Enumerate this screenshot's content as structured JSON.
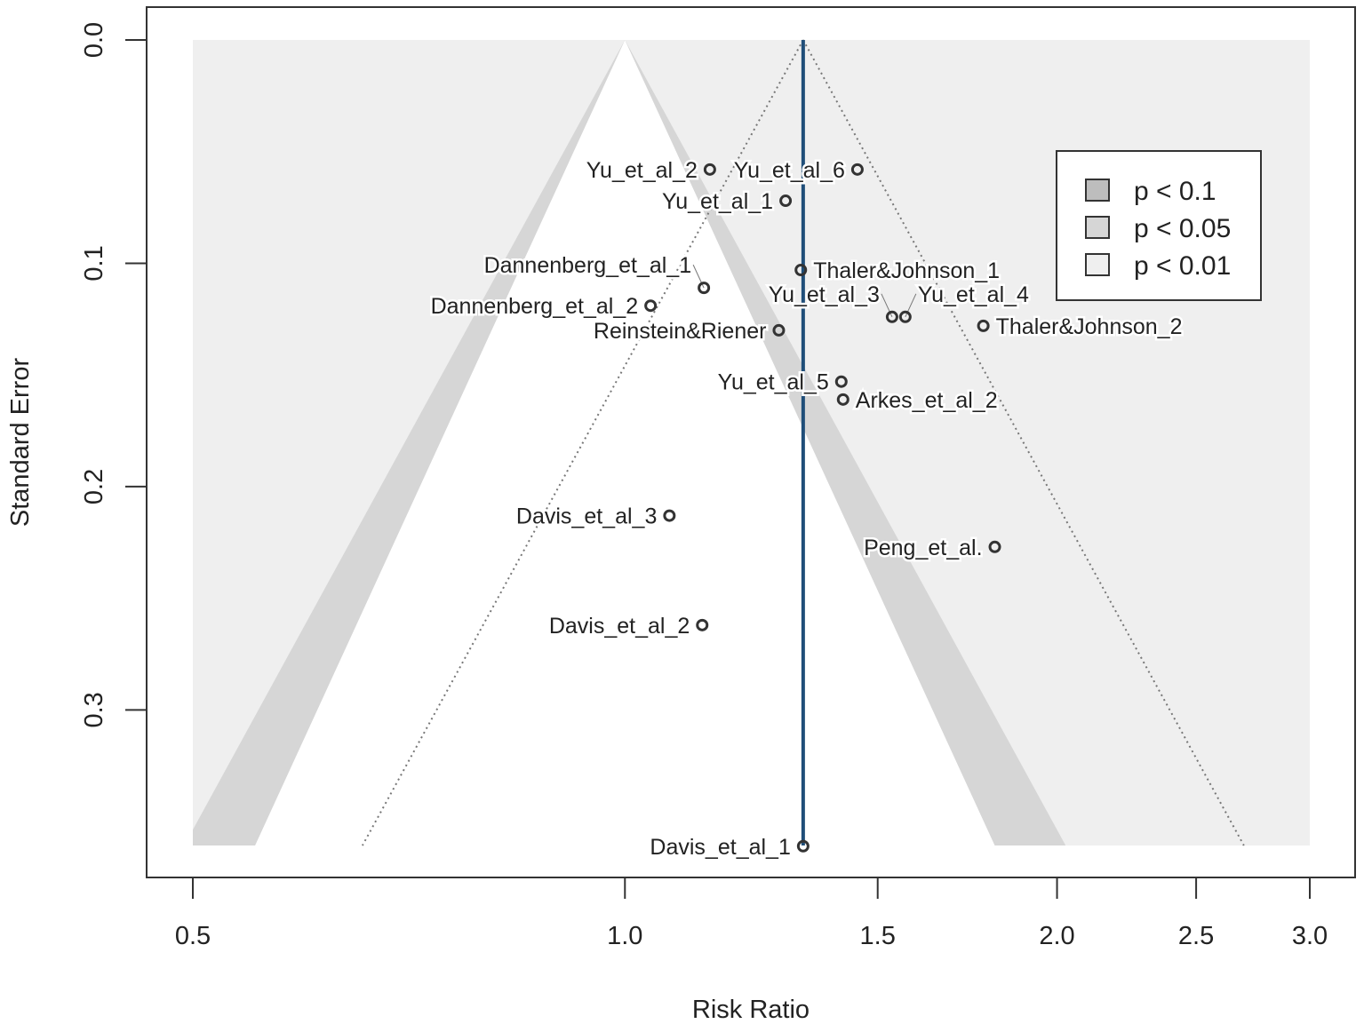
{
  "chart_data": {
    "type": "scatter",
    "subtype": "contour-enhanced funnel plot",
    "xlabel": "Risk Ratio",
    "ylabel": "Standard Error",
    "x_scale": "log",
    "xlim": [
      0.5,
      3.0
    ],
    "ylim": [
      0.3607,
      0.0
    ],
    "x_ticks": [
      "0.5",
      "1.0",
      "1.5",
      "2.0",
      "2.5",
      "3.0"
    ],
    "y_ticks": [
      "0.0",
      "0.1",
      "0.2",
      "0.3"
    ],
    "summary_estimate": 1.331,
    "contour_center": 1.0,
    "legend": {
      "placement": "top-right",
      "entries": [
        {
          "label": "p < 0.1",
          "color": "#bdbdbd",
          "z": 1.645
        },
        {
          "label": "p < 0.05",
          "color": "#d6d6d6",
          "z": 1.96
        },
        {
          "label": "p < 0.01",
          "color": "#efefef",
          "z": 2.576
        }
      ]
    },
    "points": [
      {
        "label": "Yu_et_al_2",
        "rr": 1.146,
        "se": 0.058
      },
      {
        "label": "Yu_et_al_6",
        "rr": 1.452,
        "se": 0.058
      },
      {
        "label": "Yu_et_al_1",
        "rr": 1.294,
        "se": 0.072
      },
      {
        "label": "Thaler&Johnson_1",
        "rr": 1.326,
        "se": 0.103
      },
      {
        "label": "Dannenberg_et_al_1",
        "rr": 1.135,
        "se": 0.111
      },
      {
        "label": "Dannenberg_et_al_2",
        "rr": 1.042,
        "se": 0.119
      },
      {
        "label": "Yu_et_al_3",
        "rr": 1.535,
        "se": 0.124
      },
      {
        "label": "Yu_et_al_4",
        "rr": 1.568,
        "se": 0.124
      },
      {
        "label": "Reinstein&Riener",
        "rr": 1.28,
        "se": 0.13
      },
      {
        "label": "Thaler&Johnson_2",
        "rr": 1.777,
        "se": 0.128
      },
      {
        "label": "Yu_et_al_5",
        "rr": 1.415,
        "se": 0.153
      },
      {
        "label": "Arkes_et_al_2",
        "rr": 1.419,
        "se": 0.161
      },
      {
        "label": "Davis_et_al_3",
        "rr": 1.074,
        "se": 0.213
      },
      {
        "label": "Peng_et_al.",
        "rr": 1.81,
        "se": 0.227
      },
      {
        "label": "Davis_et_al_2",
        "rr": 1.132,
        "se": 0.262
      },
      {
        "label": "Davis_et_al_1",
        "rr": 1.331,
        "se": 0.361
      }
    ],
    "colors": {
      "summary_line": "#1f4e79",
      "point": "#333333",
      "outer": "#efefef"
    }
  }
}
